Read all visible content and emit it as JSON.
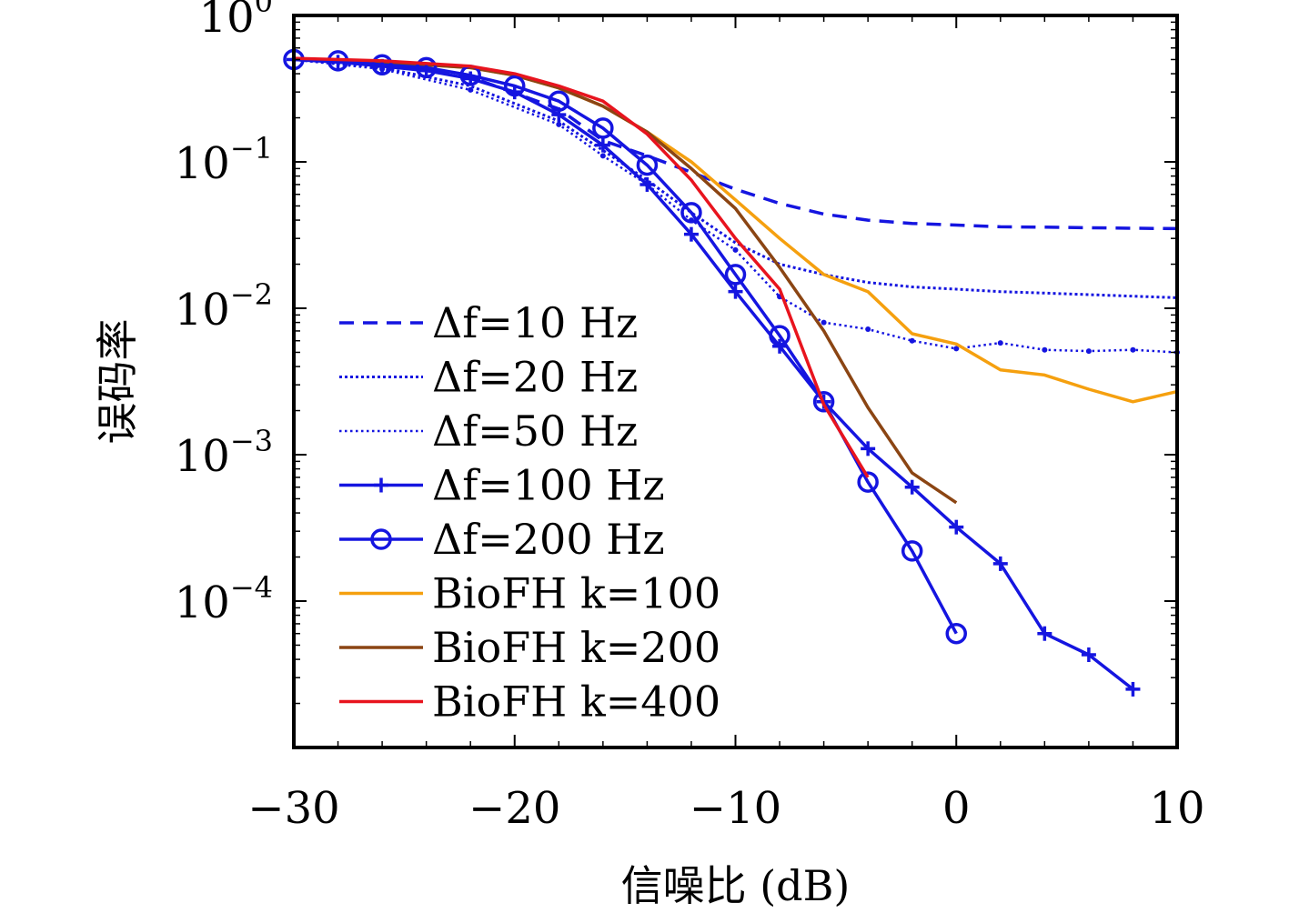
{
  "chart_data": {
    "type": "line",
    "xlabel": "信噪比 (dB)",
    "ylabel": "误码率",
    "xlim": [
      -30,
      10
    ],
    "ylim": [
      1e-05,
      1
    ],
    "yscale": "log",
    "x_ticks": [
      {
        "value": -30,
        "label": "−30"
      },
      {
        "value": -20,
        "label": "−20"
      },
      {
        "value": -10,
        "label": "−10"
      },
      {
        "value": 0,
        "label": "0"
      },
      {
        "value": 10,
        "label": "10"
      }
    ],
    "y_ticks": [
      {
        "value": 1,
        "base": "10",
        "exp": "0"
      },
      {
        "value": 0.1,
        "base": "10",
        "exp": "−1"
      },
      {
        "value": 0.01,
        "base": "10",
        "exp": "−2"
      },
      {
        "value": 0.001,
        "base": "10",
        "exp": "−3"
      },
      {
        "value": 0.0001,
        "base": "10",
        "exp": "−4"
      }
    ],
    "grid": false,
    "legend_position": "lower-left",
    "series": [
      {
        "name": "Δf=10 Hz",
        "color": "#1515e0",
        "style": "dashed",
        "marker": "none",
        "x": [
          -30,
          -26,
          -22,
          -18,
          -16,
          -14,
          -12,
          -10,
          -8,
          -6,
          -4,
          -2,
          0,
          2,
          4,
          6,
          8,
          10
        ],
        "y": [
          0.5,
          0.47,
          0.38,
          0.23,
          0.14,
          0.11,
          0.085,
          0.065,
          0.052,
          0.044,
          0.04,
          0.038,
          0.037,
          0.036,
          0.0358,
          0.0355,
          0.0352,
          0.035
        ]
      },
      {
        "name": "Δf=20 Hz",
        "color": "#1515e0",
        "style": "dotted",
        "marker": "none",
        "x": [
          -30,
          -26,
          -22,
          -18,
          -16,
          -14,
          -12,
          -10,
          -8,
          -6,
          -4,
          -2,
          0,
          2,
          4,
          6,
          8,
          10
        ],
        "y": [
          0.5,
          0.44,
          0.33,
          0.19,
          0.12,
          0.075,
          0.045,
          0.028,
          0.02,
          0.017,
          0.015,
          0.014,
          0.0135,
          0.013,
          0.0127,
          0.0124,
          0.0121,
          0.0118
        ]
      },
      {
        "name": "Δf=50 Hz",
        "color": "#1515e0",
        "style": "dotted-dot",
        "marker": "none",
        "x": [
          -30,
          -26,
          -22,
          -18,
          -16,
          -14,
          -12,
          -10,
          -8,
          -6,
          -4,
          -2,
          0,
          2,
          4,
          6,
          8,
          10
        ],
        "y": [
          0.5,
          0.43,
          0.31,
          0.18,
          0.11,
          0.07,
          0.04,
          0.025,
          0.012,
          0.008,
          0.0072,
          0.006,
          0.0053,
          0.0058,
          0.0052,
          0.0051,
          0.0052,
          0.005
        ]
      },
      {
        "name": "Δf=100 Hz",
        "color": "#1515e0",
        "style": "solid",
        "marker": "plus",
        "x": [
          -30,
          -28,
          -26,
          -24,
          -22,
          -20,
          -18,
          -16,
          -14,
          -12,
          -10,
          -8,
          -6,
          -4,
          -2,
          0,
          2,
          4,
          6,
          8
        ],
        "y": [
          0.5,
          0.48,
          0.45,
          0.42,
          0.37,
          0.3,
          0.21,
          0.13,
          0.07,
          0.032,
          0.013,
          0.0055,
          0.0023,
          0.0011,
          0.0006,
          0.00032,
          0.00018,
          6e-05,
          4.3e-05,
          2.5e-05
        ]
      },
      {
        "name": "Δf=200 Hz",
        "color": "#1515e0",
        "style": "solid",
        "marker": "circle",
        "x": [
          -30,
          -28,
          -26,
          -24,
          -22,
          -20,
          -18,
          -16,
          -14,
          -12,
          -10,
          -8,
          -6,
          -4,
          -2,
          0
        ],
        "y": [
          0.5,
          0.49,
          0.46,
          0.44,
          0.39,
          0.33,
          0.26,
          0.17,
          0.095,
          0.045,
          0.017,
          0.0065,
          0.0023,
          0.00065,
          0.00022,
          6e-05
        ]
      },
      {
        "name": "BioFH k=100",
        "color": "#f5a00f",
        "style": "solid",
        "marker": "none",
        "x": [
          -30,
          -26,
          -22,
          -20,
          -18,
          -16,
          -14,
          -12,
          -10,
          -8,
          -6,
          -4,
          -2,
          0,
          2,
          4,
          6,
          8,
          10
        ],
        "y": [
          0.5,
          0.48,
          0.44,
          0.39,
          0.32,
          0.24,
          0.16,
          0.1,
          0.055,
          0.03,
          0.017,
          0.013,
          0.0067,
          0.0057,
          0.0038,
          0.0035,
          0.0028,
          0.0023,
          0.0027
        ]
      },
      {
        "name": "BioFH k=200",
        "color": "#8b4513",
        "style": "solid",
        "marker": "none",
        "x": [
          -30,
          -26,
          -22,
          -20,
          -18,
          -16,
          -14,
          -12,
          -10,
          -8,
          -6,
          -4,
          -2,
          0
        ],
        "y": [
          0.5,
          0.48,
          0.44,
          0.39,
          0.32,
          0.24,
          0.16,
          0.09,
          0.048,
          0.019,
          0.007,
          0.0021,
          0.00075,
          0.00047
        ]
      },
      {
        "name": "BioFH k=400",
        "color": "#e8141e",
        "style": "solid",
        "marker": "none",
        "x": [
          -30,
          -26,
          -22,
          -20,
          -18,
          -16,
          -14,
          -12,
          -10,
          -8,
          -6,
          -4
        ],
        "y": [
          0.51,
          0.49,
          0.45,
          0.4,
          0.33,
          0.26,
          0.155,
          0.075,
          0.03,
          0.0135,
          0.0022,
          0.0007
        ]
      }
    ]
  }
}
